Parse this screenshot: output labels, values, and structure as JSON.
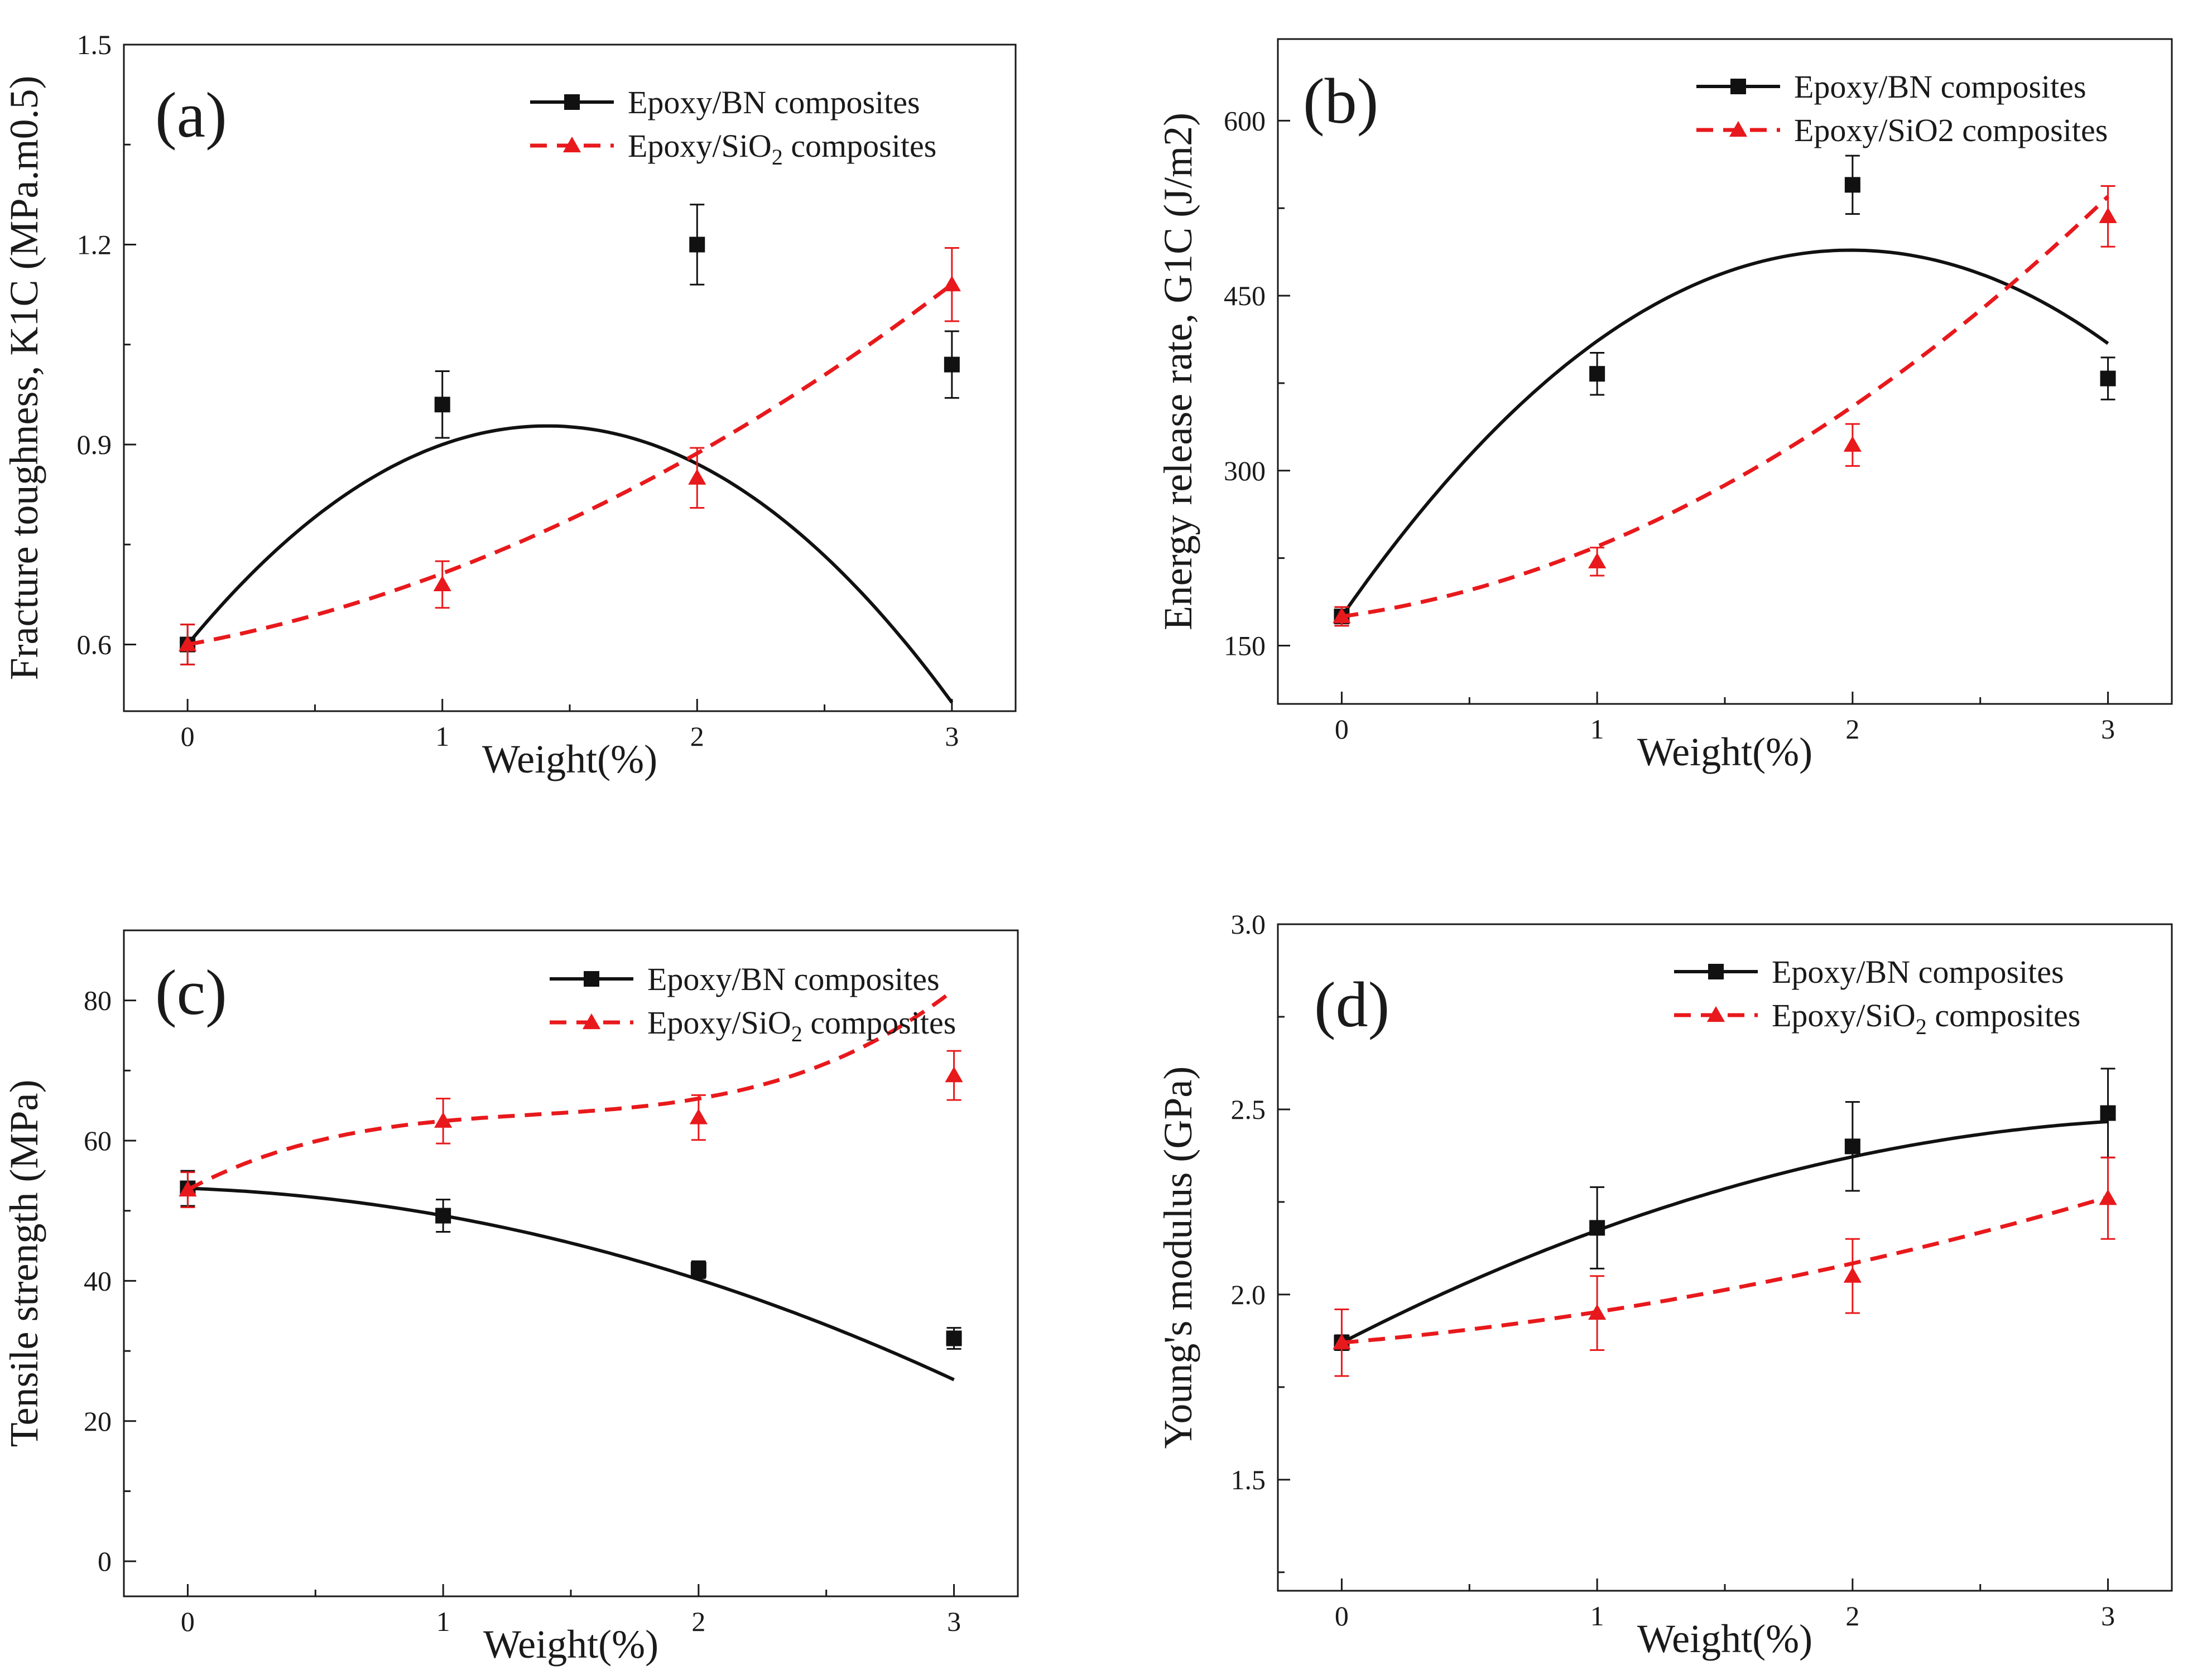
{
  "figure": {
    "colors": {
      "bn": "#111111",
      "sio2": "#e8191c",
      "axis": "#1a1a1a"
    }
  },
  "chart_data": [
    {
      "type": "line",
      "panel_label": "(a)",
      "xlabel": "Weight(%)",
      "ylabel": "Fracture toughness, K1C (MPa.m0.5)",
      "xlim": [
        -0.25,
        3.25
      ],
      "ylim": [
        0.5,
        1.5
      ],
      "xticks": [
        0,
        1,
        2,
        3
      ],
      "xtick_labels": [
        "0",
        "1",
        "2",
        "3"
      ],
      "yticks": [
        0.6,
        0.9,
        1.2,
        1.5
      ],
      "ytick_labels": [
        "0.6",
        "0.9",
        "1.2",
        "1.5"
      ],
      "legend_position": "top-right",
      "series": [
        {
          "name": "Epoxy/BN composites",
          "legend_main": "Epoxy/BN composites",
          "legend_sub": "",
          "legend_tail": "",
          "marker": "square",
          "line": "solid",
          "color": "#111111",
          "x": [
            0,
            1,
            2,
            3
          ],
          "values": [
            0.6,
            0.96,
            1.2,
            1.02
          ],
          "errors": [
            0.03,
            0.05,
            0.06,
            0.05
          ],
          "fit": [
            0.6,
            0.4645,
            -0.1645
          ]
        },
        {
          "name": "Epoxy/SiO2 composites",
          "legend_main": "Epoxy/SiO",
          "legend_sub": "2",
          "legend_tail": " composites",
          "marker": "triangle",
          "line": "dashed",
          "color": "#e8191c",
          "x": [
            0,
            1,
            2,
            3
          ],
          "values": [
            0.6,
            0.69,
            0.85,
            1.14
          ],
          "errors": [
            0.03,
            0.035,
            0.045,
            0.055
          ],
          "fit": [
            0.6,
            0.07,
            0.0367
          ]
        }
      ]
    },
    {
      "type": "line",
      "panel_label": "(b)",
      "xlabel": "Weight(%)",
      "ylabel": "Energy release rate, G1C (J/m2)",
      "xlim": [
        -0.25,
        3.25
      ],
      "ylim": [
        100,
        670
      ],
      "xticks": [
        0,
        1,
        2,
        3
      ],
      "xtick_labels": [
        "0",
        "1",
        "2",
        "3"
      ],
      "yticks": [
        150,
        300,
        450,
        600
      ],
      "ytick_labels": [
        "150",
        "300",
        "450",
        "600"
      ],
      "legend_position": "top-right",
      "series": [
        {
          "name": "Epoxy/BN composites",
          "legend_main": "Epoxy/BN composites",
          "legend_sub": "",
          "legend_tail": "",
          "marker": "square",
          "line": "solid",
          "color": "#111111",
          "x": [
            0,
            1,
            2,
            3
          ],
          "values": [
            175,
            383,
            545,
            379
          ],
          "errors": [
            8,
            18,
            25,
            18
          ],
          "fit": [
            175,
            315,
            -79
          ]
        },
        {
          "name": "Epoxy/SiO2 composites",
          "legend_main": "Epoxy/SiO2 composites",
          "legend_sub": "",
          "legend_tail": "",
          "marker": "triangle",
          "line": "dashed",
          "color": "#e8191c",
          "x": [
            0,
            1,
            2,
            3
          ],
          "values": [
            175,
            222,
            322,
            518
          ],
          "errors": [
            8,
            12,
            18,
            26
          ],
          "fit": [
            175,
            30,
            30
          ]
        }
      ]
    },
    {
      "type": "line",
      "panel_label": "(c)",
      "xlabel": "Weight(%)",
      "ylabel": "Tensile strength (MPa)",
      "xlim": [
        -0.25,
        3.25
      ],
      "ylim": [
        -5,
        90
      ],
      "xticks": [
        0,
        1,
        2,
        3
      ],
      "xtick_labels": [
        "0",
        "1",
        "2",
        "3"
      ],
      "yticks": [
        0,
        20,
        40,
        60,
        80
      ],
      "ytick_labels": [
        "0",
        "20",
        "40",
        "60",
        "80"
      ],
      "legend_position": "top-right",
      "series": [
        {
          "name": "Epoxy/BN composites",
          "legend_main": "Epoxy/BN composites",
          "legend_sub": "",
          "legend_tail": "",
          "marker": "square",
          "line": "solid",
          "color": "#111111",
          "x": [
            0,
            1,
            2,
            3
          ],
          "values": [
            53.2,
            49.3,
            41.6,
            31.8
          ],
          "errors": [
            2.5,
            2.3,
            1.2,
            1.5
          ],
          "fit": [
            53.2,
            -1.3,
            -2.6
          ]
        },
        {
          "name": "Epoxy/SiO2 composites",
          "legend_main": "Epoxy/SiO",
          "legend_sub": "2",
          "legend_tail": " composites",
          "marker": "triangle",
          "line": "dashed",
          "color": "#e8191c",
          "x": [
            0,
            1,
            2,
            3
          ],
          "values": [
            53.0,
            62.8,
            63.3,
            69.3
          ],
          "errors": [
            2.5,
            3.2,
            3.2,
            3.5
          ],
          "fit": [
            53.0,
            19.4,
            -12.75,
            3.15
          ]
        }
      ]
    },
    {
      "type": "line",
      "panel_label": "(d)",
      "xlabel": "Weight(%)",
      "ylabel": "Young's modulus (GPa)",
      "xlim": [
        -0.25,
        3.25
      ],
      "ylim": [
        1.2,
        3.0
      ],
      "xticks": [
        0,
        1,
        2,
        3
      ],
      "xtick_labels": [
        "0",
        "1",
        "2",
        "3"
      ],
      "yticks": [
        1.5,
        2.0,
        2.5,
        3.0
      ],
      "ytick_labels": [
        "1.5",
        "2.0",
        "2.5",
        "3.0"
      ],
      "legend_position": "top-right",
      "series": [
        {
          "name": "Epoxy/BN composites",
          "legend_main": "Epoxy/BN composites",
          "legend_sub": "",
          "legend_tail": "",
          "marker": "square",
          "line": "solid",
          "color": "#111111",
          "x": [
            0,
            1,
            2,
            3
          ],
          "values": [
            1.87,
            2.18,
            2.4,
            2.49
          ],
          "errors": [
            0.02,
            0.11,
            0.12,
            0.12
          ],
          "fit": [
            1.87,
            0.355,
            -0.052
          ]
        },
        {
          "name": "Epoxy/SiO2 composites",
          "legend_main": "Epoxy/SiO",
          "legend_sub": "2",
          "legend_tail": " composites",
          "marker": "triangle",
          "line": "dashed",
          "color": "#e8191c",
          "x": [
            0,
            1,
            2,
            3
          ],
          "values": [
            1.87,
            1.95,
            2.05,
            2.26
          ],
          "errors": [
            0.09,
            0.1,
            0.1,
            0.11
          ],
          "fit": [
            1.87,
            0.059,
            0.024
          ]
        }
      ]
    }
  ]
}
